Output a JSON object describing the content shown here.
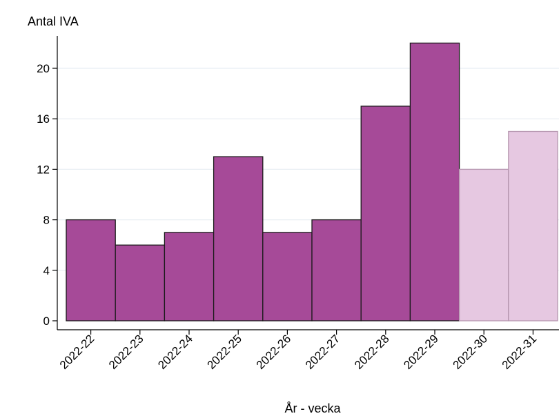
{
  "chart_data": {
    "type": "bar",
    "ylabel": "Antal IVA",
    "xlabel": "År - vecka",
    "categories": [
      "2022-22",
      "2022-23",
      "2022-24",
      "2022-25",
      "2022-26",
      "2022-27",
      "2022-28",
      "2022-29",
      "2022-30",
      "2022-31"
    ],
    "values": [
      8,
      6,
      7,
      13,
      7,
      8,
      17,
      22,
      12,
      15
    ],
    "preliminary": [
      false,
      false,
      false,
      false,
      false,
      false,
      false,
      false,
      true,
      true
    ],
    "ylim": [
      0,
      23
    ],
    "yticks": [
      0,
      4,
      8,
      12,
      16,
      20
    ],
    "grid": true,
    "colors": {
      "bar": "#a64a98",
      "bar_preliminary": "#e6c8e1",
      "edge": "#1a1a1a",
      "edge_preliminary": "#b596af",
      "grid": "#e8eef3"
    }
  }
}
